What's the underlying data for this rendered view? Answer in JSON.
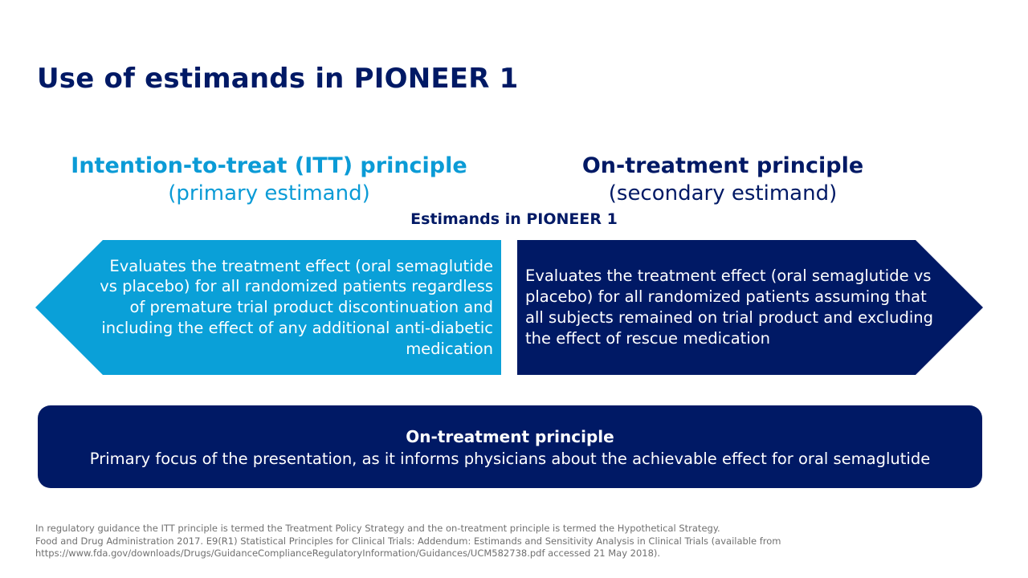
{
  "slide": {
    "title": "Use of estimands in PIONEER 1"
  },
  "itt": {
    "title": "Intention-to-treat (ITT) principle",
    "subtitle": "(primary estimand)",
    "description": "Evaluates the treatment effect (oral semaglutide vs placebo) for all randomized patients regardless of premature trial product discontinuation and including the effect of any additional anti-diabetic medication"
  },
  "on_treatment": {
    "title": "On-treatment principle",
    "subtitle": "(secondary estimand)",
    "description": "Evaluates the treatment effect (oral semaglutide vs placebo) for all randomized patients assuming that all subjects remained on trial product and excluding the effect of rescue medication"
  },
  "estimands_label": "Estimands in PIONEER 1",
  "focus": {
    "title": "On-treatment principle",
    "text": "Primary focus of the presentation, as it informs physicians about the achievable effect for oral semaglutide"
  },
  "footnotes": {
    "line1": "In regulatory guidance the ITT principle is termed the Treatment Policy Strategy and the on-treatment principle is termed the Hypothetical Strategy.",
    "line2": "Food and Drug Administration 2017. E9(R1) Statistical Principles for Clinical Trials: Addendum: Estimands and Sensitivity Analysis in Clinical Trials (available from",
    "line3": "https://www.fda.gov/downloads/Drugs/GuidanceComplianceRegulatoryInformation/Guidances/UCM582738.pdf accessed 21 May 2018)."
  },
  "colors": {
    "navy": "#001965",
    "light_blue": "#0aa0d8",
    "footnote_gray": "#707070"
  }
}
